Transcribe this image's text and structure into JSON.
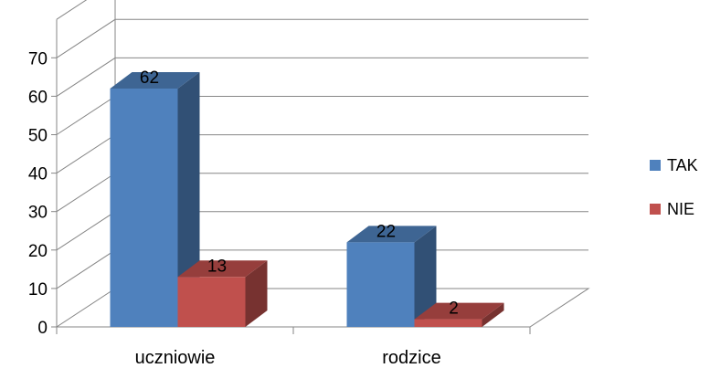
{
  "chart_data": {
    "type": "bar",
    "style": "3d-clustered-column",
    "categories": [
      "uczniowie",
      "rodzice"
    ],
    "series": [
      {
        "name": "TAK",
        "values": [
          62,
          22
        ],
        "color": "#4F81BD"
      },
      {
        "name": "NIE",
        "values": [
          13,
          2
        ],
        "color": "#C0504D"
      }
    ],
    "y_ticks": [
      "0",
      "10",
      "20",
      "30",
      "40",
      "50",
      "60",
      "70"
    ],
    "ylim": [
      0,
      80
    ],
    "grid": true,
    "legend_position": "right",
    "data_labels": true,
    "title": "",
    "xlabel": "",
    "ylabel": ""
  }
}
